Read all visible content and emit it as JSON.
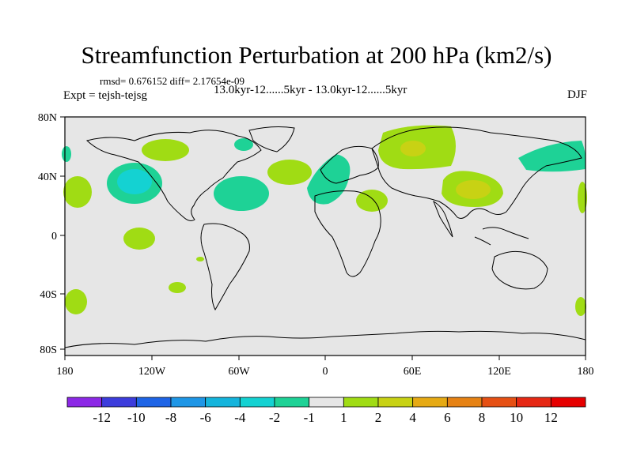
{
  "title": "Streamfunction Perturbation at 200 hPa (km2/s)",
  "stats": "rmsd= 0.676152 diff= 2.17654e-09",
  "comparison": "13.0kyr-12......5kyr - 13.0kyr-12......5kyr",
  "experiment": "Expt = tejsh-tejsg",
  "season": "DJF",
  "lat_ticks": [
    "80N",
    "40N",
    "0",
    "40S",
    "80S"
  ],
  "lon_ticks": [
    "180",
    "120W",
    "60W",
    "0",
    "60E",
    "120E",
    "180"
  ],
  "colorbar": {
    "labels": [
      "-12",
      "-10",
      "-8",
      "-6",
      "-4",
      "-2",
      "-1",
      "1",
      "2",
      "4",
      "6",
      "8",
      "10",
      "12"
    ],
    "colors": [
      "#8c28e6",
      "#3c3cdc",
      "#1e64e6",
      "#1e96e6",
      "#14b4dc",
      "#14d2d2",
      "#1ed296",
      "#e6e6e6",
      "#a0dc14",
      "#c8d214",
      "#e6aa14",
      "#e68214",
      "#e65014",
      "#e62814",
      "#e60000"
    ]
  },
  "colors": {
    "land_background": "#e6e6e6",
    "coastline": "#000000"
  }
}
